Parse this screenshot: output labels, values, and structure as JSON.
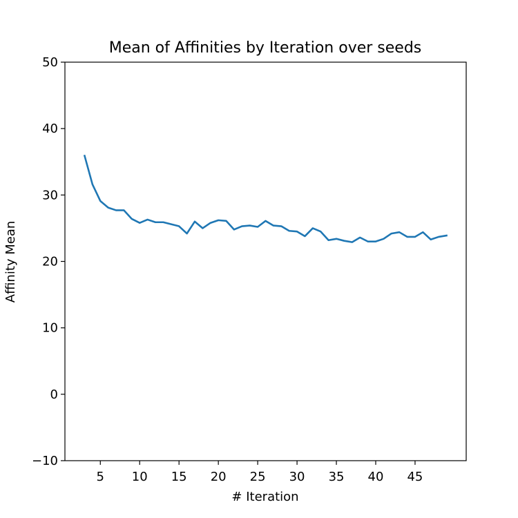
{
  "chart_data": {
    "type": "line",
    "title": "Mean of Affinities by Iteration over seeds",
    "xlabel": "# Iteration",
    "ylabel": "Affinity Mean",
    "xlim": [
      0.5,
      51.5
    ],
    "ylim": [
      -10,
      50
    ],
    "xticks": [
      5,
      10,
      15,
      20,
      25,
      30,
      35,
      40,
      45
    ],
    "yticks": [
      -10,
      0,
      10,
      20,
      30,
      40,
      50
    ],
    "grid": false,
    "series": [
      {
        "color": "#1f77b4",
        "x": [
          3,
          4,
          5,
          6,
          7,
          8,
          9,
          10,
          11,
          12,
          13,
          14,
          15,
          16,
          17,
          18,
          19,
          20,
          21,
          22,
          23,
          24,
          25,
          26,
          27,
          28,
          29,
          30,
          31,
          32,
          33,
          34,
          35,
          36,
          37,
          38,
          39,
          40,
          41,
          42,
          43,
          44,
          45,
          46,
          47,
          48,
          49
        ],
        "y": [
          35.9,
          31.6,
          29.1,
          28.1,
          27.7,
          27.7,
          26.4,
          25.8,
          26.3,
          25.9,
          25.9,
          25.6,
          25.3,
          24.2,
          26.0,
          25.0,
          25.8,
          26.2,
          26.1,
          24.8,
          25.3,
          25.4,
          25.2,
          26.1,
          25.4,
          25.3,
          24.6,
          24.5,
          23.8,
          25.0,
          24.5,
          23.2,
          23.4,
          23.1,
          22.9,
          23.6,
          23.0,
          23.0,
          23.4,
          24.2,
          24.4,
          23.7,
          23.7,
          24.4,
          23.3,
          23.7,
          23.9
        ]
      }
    ]
  }
}
